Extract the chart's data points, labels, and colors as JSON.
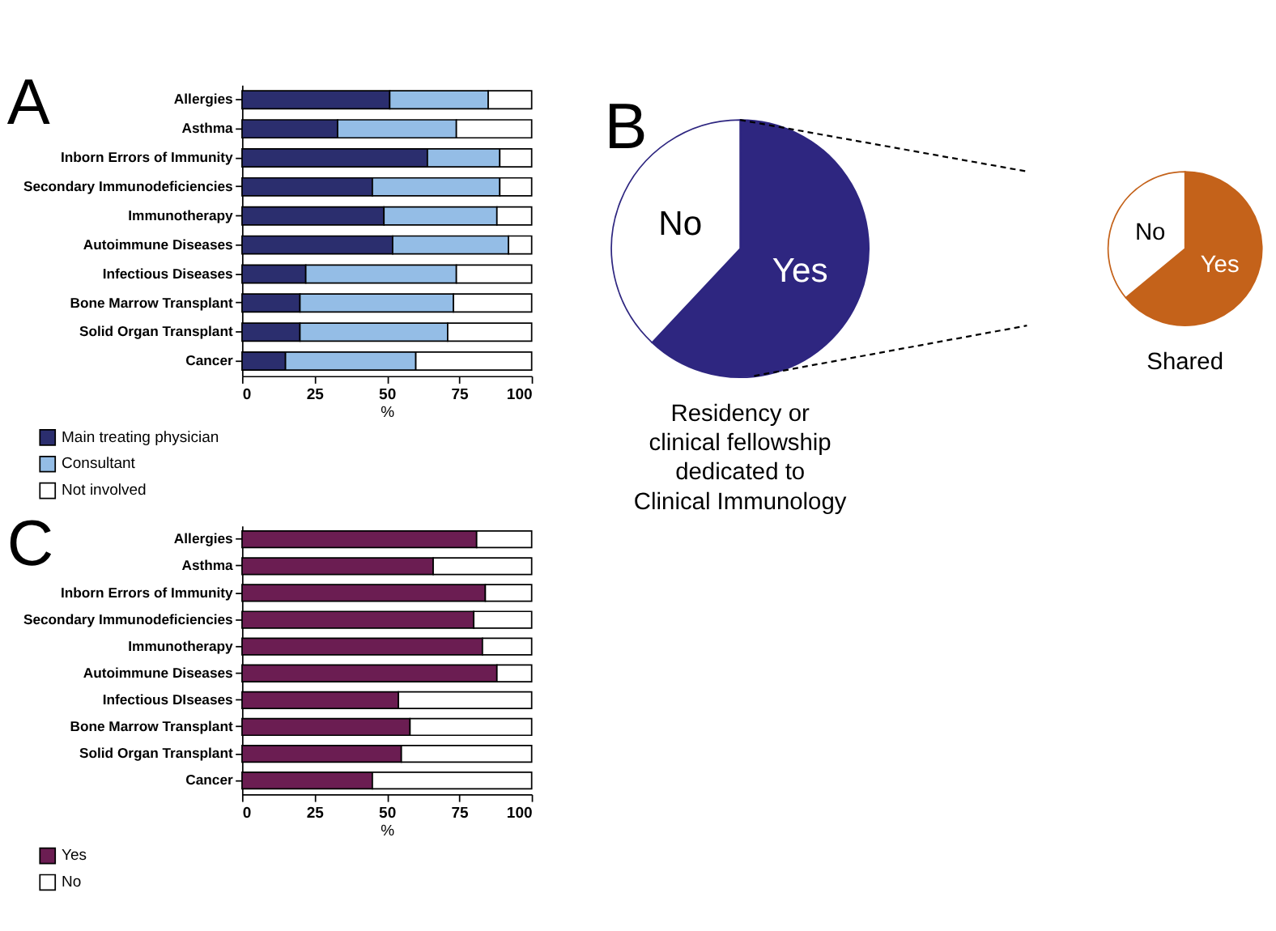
{
  "chart_data": [
    {
      "type": "bar",
      "orientation": "horizontal",
      "stacked": true,
      "title": "A",
      "xlabel": "%",
      "legend": "bottom left",
      "categories": [
        "Allergies",
        "Asthma",
        "Inborn Errors of Immunity",
        "Secondary Immunodeficiencies",
        "Immunotherapy",
        "Autoimmune Diseases",
        "Infectious Diseases",
        "Bone Marrow Transplant",
        "Solid Organ Transplant",
        "Cancer"
      ],
      "series": [
        {
          "name": "Main treating physician",
          "color": "#2b2e6e",
          "values": [
            51,
            33,
            64,
            45,
            49,
            52,
            22,
            20,
            20,
            15
          ]
        },
        {
          "name": "Consultant",
          "color": "#94bde6",
          "values": [
            34,
            41,
            25,
            44,
            39,
            40,
            52,
            53,
            51,
            45
          ]
        },
        {
          "name": "Not involved",
          "color": "#ffffff",
          "values": [
            15,
            26,
            11,
            11,
            12,
            8,
            26,
            27,
            29,
            40
          ]
        }
      ],
      "xlim": [
        0,
        100
      ],
      "xticks": [
        0,
        25,
        50,
        75,
        100
      ]
    },
    {
      "type": "pie",
      "title": "Residency or clinical fellowship dedicated to Clinical Immunology",
      "annotations": [
        "B"
      ],
      "categories": [
        "Yes",
        "No"
      ],
      "values": [
        62,
        38
      ],
      "colors": [
        "#2e2680",
        "#ffffff"
      ]
    },
    {
      "type": "pie",
      "title": "Shared",
      "categories": [
        "Yes",
        "No"
      ],
      "values": [
        64,
        36
      ],
      "colors": [
        "#c4621a",
        "#ffffff"
      ]
    },
    {
      "type": "bar",
      "orientation": "horizontal",
      "stacked": true,
      "title": "C",
      "xlabel": "%",
      "legend": "bottom left",
      "categories": [
        "Allergies",
        "Asthma",
        "Inborn Errors of Immunity",
        "Secondary Immunodeficiencies",
        "Immunotherapy",
        "Autoimmune Diseases",
        "Infectious DIseases",
        "Bone Marrow Transplant",
        "Solid Organ Transplant",
        "Cancer"
      ],
      "series": [
        {
          "name": "Yes",
          "color": "#6b1d52",
          "values": [
            81,
            66,
            84,
            80,
            83,
            88,
            54,
            58,
            55,
            45
          ]
        },
        {
          "name": "No",
          "color": "#ffffff",
          "values": [
            19,
            34,
            16,
            20,
            17,
            12,
            46,
            42,
            45,
            55
          ]
        }
      ],
      "xlim": [
        0,
        100
      ],
      "xticks": [
        0,
        25,
        50,
        75,
        100
      ]
    }
  ]
}
